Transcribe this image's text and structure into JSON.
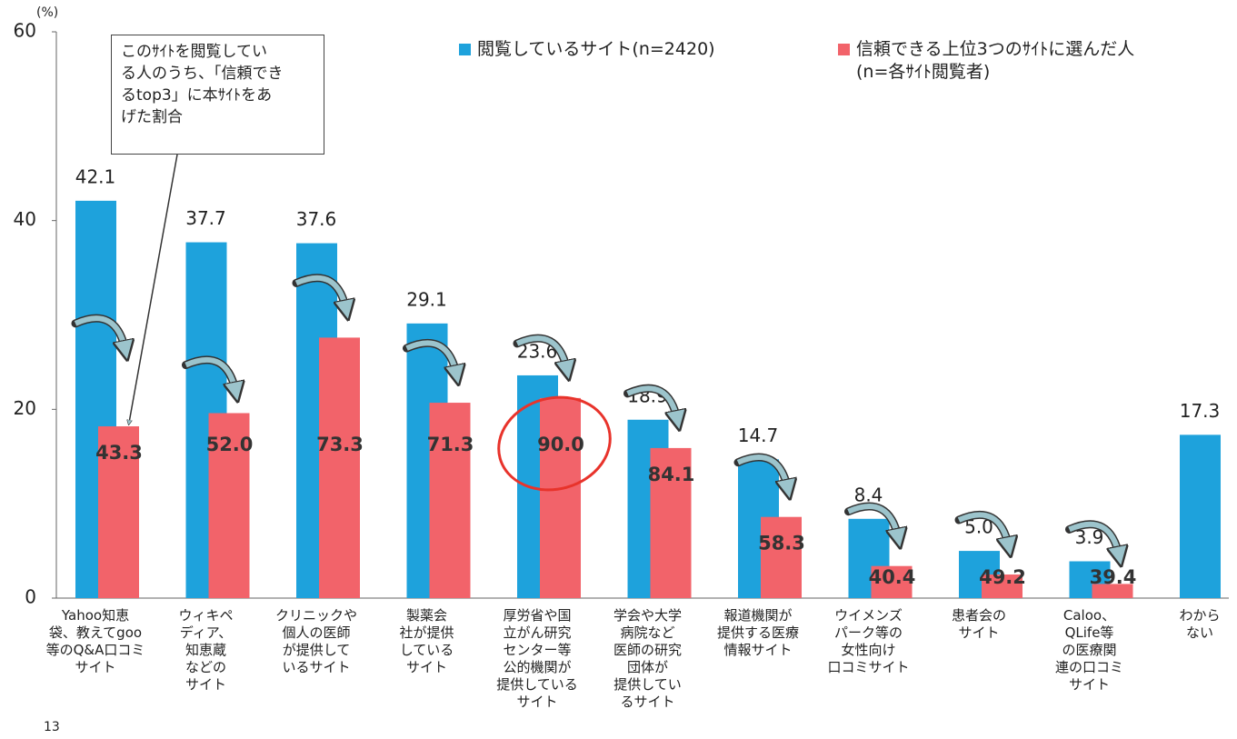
{
  "chart_data": {
    "type": "bar",
    "y_unit": "(%)",
    "categories": [
      "Yahoo知恵\n袋、教えてgoo\n等のQ&A口コミ\nサイト",
      "ウィキペ\nディア、\n知恵蔵\nなどの\nサイト",
      "クリニックや\n個人の医師\nが提供して\nいるサイト",
      "製薬会\n社が提供\nしている\nサイト",
      "厚労省や国\n立がん研究\nセンター等\n公的機関が\n提供している\nサイト",
      "学会や大学\n病院など\n医師の研究\n団体が\n提供してい\nるサイト",
      "報道機関が\n提供する医療\n情報サイト",
      "ウイメンズ\nパーク等の\n女性向け\n口コミサイト",
      "患者会の\nサイト",
      "Caloo、\nQLife等\nの医療関\n連の口コミ\nサイト",
      "わから\nない"
    ],
    "series": [
      {
        "name": "閲覧しているサイト(n=2420)",
        "color": "#1ea2dc",
        "values": [
          42.1,
          37.7,
          37.6,
          29.1,
          23.6,
          18.9,
          14.7,
          8.4,
          5.0,
          3.9,
          17.3
        ],
        "value_labels": [
          "42.1",
          "37.7",
          "37.6",
          "29.1",
          "23.6",
          "18.9",
          "14.7",
          "8.4",
          "5.0",
          "3.9",
          "17.3"
        ]
      },
      {
        "name": "信頼できる上位3つのｻｲﾄに選んだ人\n(n=各ｻｲﾄ閲覧者)",
        "color": "#f2636a",
        "values": [
          18.2,
          19.6,
          27.6,
          20.7,
          21.2,
          15.9,
          8.6,
          3.4,
          2.5,
          1.5,
          null
        ],
        "rate_labels": [
          "43.3",
          "52.0",
          "73.3",
          "71.3",
          "90.0",
          "84.1",
          "58.3",
          "40.4",
          "49.2",
          "39.4",
          null
        ]
      }
    ],
    "annotation": "このｻｲﾄを閲覧してい\nる人のうち、「信頼でき\nるtop3」に本ｻｲﾄをあ\nげた割合",
    "page_number": "13",
    "ylim": [
      0,
      60
    ],
    "yticks": [
      0,
      20,
      40,
      60
    ],
    "grid": false
  }
}
